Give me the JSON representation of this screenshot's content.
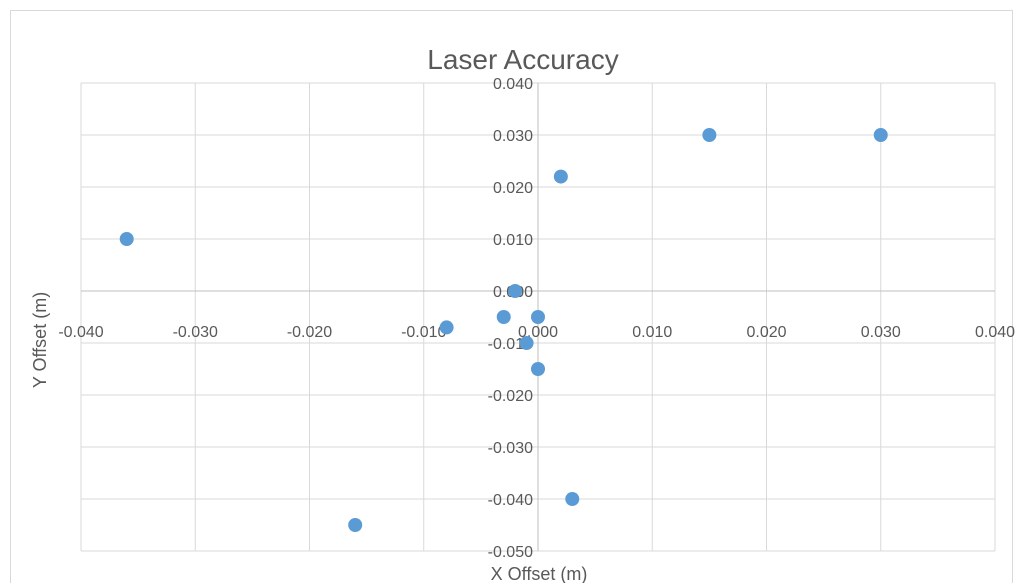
{
  "chart_data": {
    "type": "scatter",
    "title": "Laser Accuracy",
    "xlabel": "X Offset (m)",
    "ylabel": "Y Offset (m)",
    "xlim": [
      -0.04,
      0.04
    ],
    "ylim": [
      -0.05,
      0.04
    ],
    "x_ticks": [
      "-0.040",
      "-0.030",
      "-0.020",
      "-0.010",
      "0.000",
      "0.010",
      "0.020",
      "0.030",
      "0.040"
    ],
    "y_ticks": [
      "0.040",
      "0.030",
      "0.020",
      "0.010",
      "0.000",
      "-0.010",
      "-0.020",
      "-0.030",
      "-0.040",
      "-0.050"
    ],
    "grid": true,
    "marker_color": "#5b9bd5",
    "gridline_color": "#d9d9d9",
    "series": [
      {
        "x": [
          -0.036,
          -0.016,
          -0.008,
          -0.003,
          -0.002,
          -0.001,
          0.0,
          0.0,
          0.002,
          0.003,
          0.015,
          0.03
        ],
        "y": [
          0.01,
          -0.045,
          -0.007,
          -0.005,
          0.0,
          -0.01,
          -0.005,
          -0.015,
          0.022,
          -0.04,
          0.03,
          0.03
        ]
      }
    ]
  }
}
